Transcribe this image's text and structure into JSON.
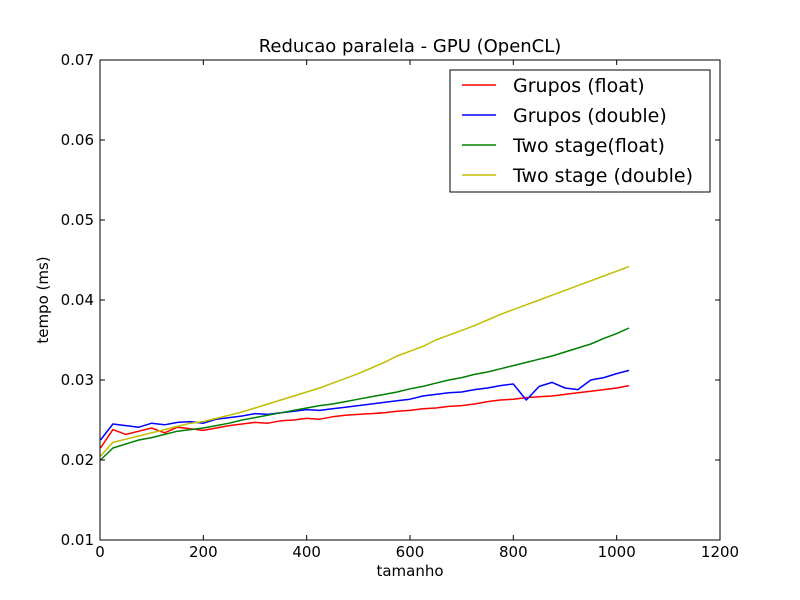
{
  "chart_data": {
    "type": "line",
    "title": "Reducao paralela - GPU (OpenCL)",
    "xlabel": "tamanho",
    "ylabel": "tempo (ms)",
    "xlim": [
      0,
      1200
    ],
    "ylim": [
      0.01,
      0.07
    ],
    "xticks": [
      0,
      200,
      400,
      600,
      800,
      1000,
      1200
    ],
    "xtick_labels": [
      "0",
      "200",
      "400",
      "600",
      "800",
      "1000",
      "1200"
    ],
    "yticks": [
      0.01,
      0.02,
      0.03,
      0.04,
      0.05,
      0.06,
      0.07
    ],
    "ytick_labels": [
      "0.01",
      "0.02",
      "0.03",
      "0.04",
      "0.05",
      "0.06",
      "0.07"
    ],
    "grid": false,
    "legend_position": "top-right",
    "x": [
      1,
      25,
      50,
      75,
      100,
      125,
      150,
      175,
      200,
      225,
      250,
      275,
      300,
      325,
      350,
      375,
      400,
      425,
      450,
      475,
      500,
      525,
      550,
      575,
      600,
      625,
      650,
      675,
      700,
      725,
      750,
      775,
      800,
      825,
      850,
      875,
      900,
      925,
      950,
      975,
      1000,
      1024
    ],
    "series": [
      {
        "name": "Grupos (float)",
        "color": "#ff0000",
        "values": [
          0.0215,
          0.0238,
          0.0232,
          0.0236,
          0.024,
          0.0234,
          0.0241,
          0.0239,
          0.0237,
          0.024,
          0.0243,
          0.0245,
          0.0247,
          0.0246,
          0.0249,
          0.025,
          0.0252,
          0.0251,
          0.0254,
          0.0256,
          0.0257,
          0.0258,
          0.0259,
          0.0261,
          0.0262,
          0.0264,
          0.0265,
          0.0267,
          0.0268,
          0.027,
          0.0273,
          0.0275,
          0.0276,
          0.0278,
          0.0279,
          0.028,
          0.0282,
          0.0284,
          0.0286,
          0.0288,
          0.029,
          0.0293
        ]
      },
      {
        "name": "Grupos (double)",
        "color": "#0000ff",
        "values": [
          0.0225,
          0.0245,
          0.0243,
          0.0241,
          0.0246,
          0.0244,
          0.0247,
          0.0248,
          0.0246,
          0.0251,
          0.0253,
          0.0255,
          0.0258,
          0.0257,
          0.0259,
          0.0261,
          0.0263,
          0.0262,
          0.0264,
          0.0266,
          0.0268,
          0.027,
          0.0272,
          0.0274,
          0.0276,
          0.028,
          0.0282,
          0.0284,
          0.0285,
          0.0288,
          0.029,
          0.0293,
          0.0295,
          0.0275,
          0.0292,
          0.0297,
          0.029,
          0.0288,
          0.03,
          0.0303,
          0.0308,
          0.0312
        ]
      },
      {
        "name": "Two stage(float)",
        "color": "#008000",
        "values": [
          0.02,
          0.0215,
          0.022,
          0.0225,
          0.0228,
          0.0232,
          0.0236,
          0.0238,
          0.024,
          0.0243,
          0.0246,
          0.025,
          0.0253,
          0.0256,
          0.0259,
          0.0262,
          0.0265,
          0.0268,
          0.027,
          0.0273,
          0.0276,
          0.0279,
          0.0282,
          0.0285,
          0.0289,
          0.0292,
          0.0296,
          0.03,
          0.0303,
          0.0307,
          0.031,
          0.0314,
          0.0318,
          0.0322,
          0.0326,
          0.033,
          0.0335,
          0.034,
          0.0345,
          0.0352,
          0.0358,
          0.0365
        ]
      },
      {
        "name": "Two stage (double)",
        "color": "#bfbf00",
        "values": [
          0.0205,
          0.0222,
          0.0226,
          0.023,
          0.0234,
          0.0238,
          0.0242,
          0.0246,
          0.0248,
          0.0252,
          0.0256,
          0.026,
          0.0265,
          0.027,
          0.0275,
          0.028,
          0.0285,
          0.029,
          0.0296,
          0.0302,
          0.0308,
          0.0315,
          0.0322,
          0.033,
          0.0336,
          0.0342,
          0.035,
          0.0356,
          0.0362,
          0.0368,
          0.0375,
          0.0382,
          0.0388,
          0.0394,
          0.04,
          0.0406,
          0.0412,
          0.0418,
          0.0424,
          0.043,
          0.0436,
          0.0442
        ]
      }
    ]
  }
}
